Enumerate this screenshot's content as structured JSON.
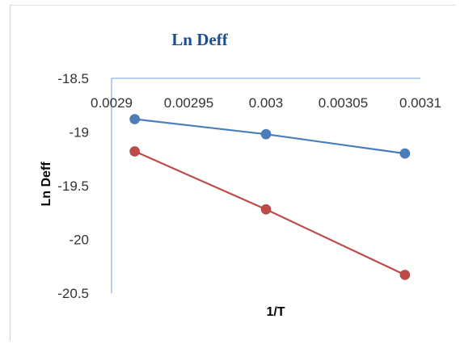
{
  "chart_data": {
    "type": "line",
    "title": "Ln Deff",
    "xlabel": "1/T",
    "ylabel": "Ln Deff",
    "xlim": [
      0.0029,
      0.0031
    ],
    "ylim": [
      -20.5,
      -18.5
    ],
    "x_ticks": [
      0.0029,
      0.00295,
      0.003,
      0.00305,
      0.0031
    ],
    "x_tick_labels": [
      "0.0029",
      "0.00295",
      "0.003",
      "0.00305",
      "0.0031"
    ],
    "y_ticks": [
      -18.5,
      -19,
      -19.5,
      -20,
      -20.5
    ],
    "y_tick_labels": [
      "-18.5",
      "-19",
      "-19.5",
      "-20",
      "-20.5"
    ],
    "x_axis_position": "top",
    "grid": false,
    "legend": "none",
    "series": [
      {
        "color": "#4a7ebb",
        "marker": "circle",
        "x": [
          0.002915,
          0.003,
          0.00309
        ],
        "y": [
          -18.88,
          -19.02,
          -19.2
        ]
      },
      {
        "color": "#be4b48",
        "marker": "circle",
        "x": [
          0.002915,
          0.003,
          0.00309
        ],
        "y": [
          -19.18,
          -19.72,
          -20.33
        ]
      }
    ]
  }
}
